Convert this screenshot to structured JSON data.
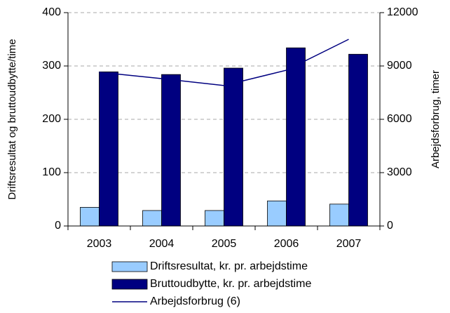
{
  "chart_data": {
    "type": "bar",
    "y_label": "Driftsresultat og bruttoudbytte/time",
    "y2_label": "Arbejdsforbrug, timer",
    "categories": [
      "2003",
      "2004",
      "2005",
      "2006",
      "2007"
    ],
    "series": [
      {
        "name": "Driftsresultat, kr. pr. arbejdstime",
        "color": "#99ccff",
        "type": "bar",
        "values": [
          35,
          29,
          29,
          47,
          41
        ]
      },
      {
        "name": "Bruttoudbytte, kr. pr. arbejdstime",
        "color": "#000080",
        "type": "bar",
        "values": [
          289,
          284,
          296,
          334,
          322
        ]
      },
      {
        "name": "Arbejdsforbrug (6)",
        "color": "#000080",
        "type": "line",
        "axis": "y2",
        "values": [
          8650,
          8290,
          7900,
          8760,
          10500
        ]
      }
    ],
    "ylim": [
      0,
      400
    ],
    "yticks": [
      0,
      100,
      200,
      300,
      400
    ],
    "y2lim": [
      0,
      12000
    ],
    "y2ticks": [
      0,
      3000,
      6000,
      9000,
      12000
    ],
    "grid": true,
    "legend": "bottom"
  }
}
